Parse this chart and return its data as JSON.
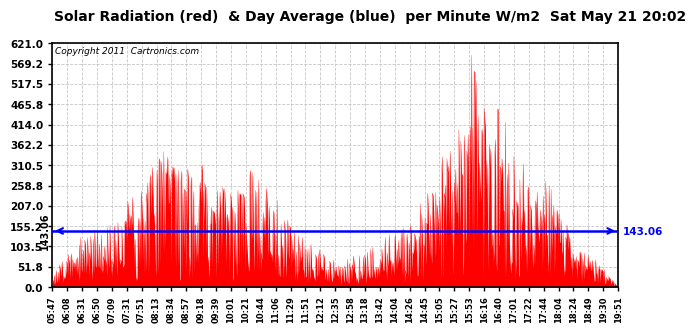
{
  "title": "Solar Radiation (red)  & Day Average (blue)  per Minute W/m2  Sat May 21 20:02",
  "copyright": "Copyright 2011  Cartronics.com",
  "y_max": 621.0,
  "y_min": 0.0,
  "y_ticks": [
    0.0,
    51.8,
    103.5,
    155.2,
    207.0,
    258.8,
    310.5,
    362.2,
    414.0,
    465.8,
    517.5,
    569.2,
    621.0
  ],
  "blue_line_value": 143.06,
  "blue_line_label": "143.06",
  "fill_color": "#ff0000",
  "blue_color": "#0000ff",
  "background_color": "#ffffff",
  "grid_color": "#c0c0c0",
  "x_labels": [
    "05:47",
    "06:08",
    "06:31",
    "06:50",
    "07:09",
    "07:31",
    "07:51",
    "08:13",
    "08:34",
    "08:57",
    "09:18",
    "09:39",
    "10:01",
    "10:21",
    "10:44",
    "11:06",
    "11:29",
    "11:51",
    "12:12",
    "12:35",
    "12:58",
    "13:18",
    "13:42",
    "14:04",
    "14:26",
    "14:45",
    "15:05",
    "15:27",
    "15:53",
    "16:16",
    "16:40",
    "17:01",
    "17:22",
    "17:44",
    "18:04",
    "18:24",
    "18:49",
    "19:30",
    "19:51"
  ],
  "n_points": 854
}
